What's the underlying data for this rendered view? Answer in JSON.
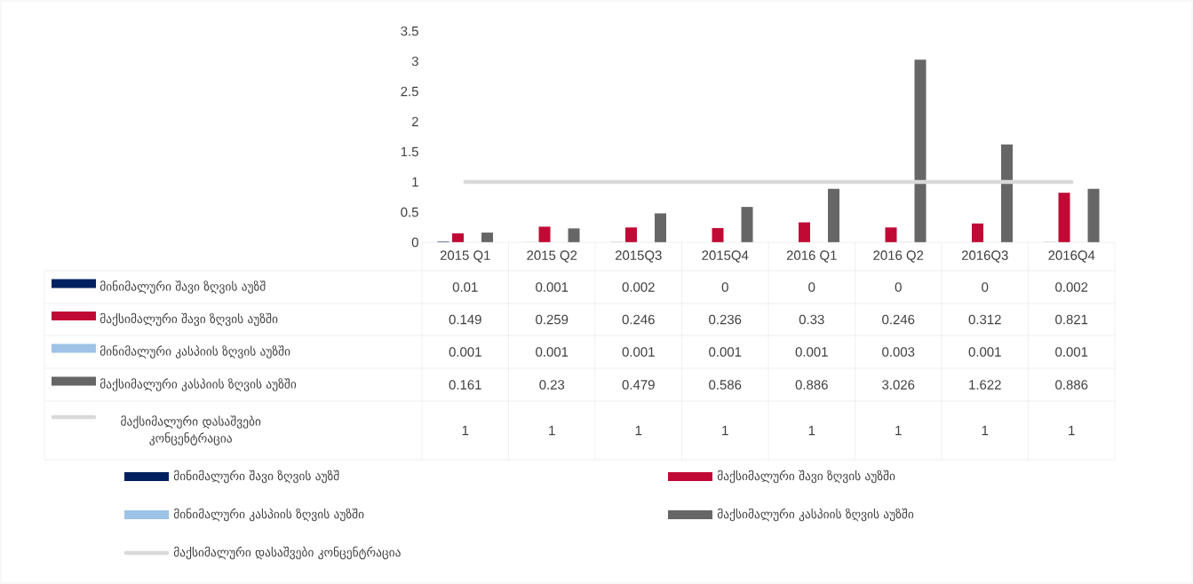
{
  "chart_data": {
    "type": "bar",
    "categories": [
      "2015 Q1",
      "2015 Q2",
      "2015Q3",
      "2015Q4",
      "2016 Q1",
      "2016 Q2",
      "2016Q3",
      "2016Q4"
    ],
    "series": [
      {
        "name": "მინიმალური შავი ზღვის აუზშ",
        "color": "#002060",
        "values": [
          0.01,
          0.001,
          0.002,
          0,
          0,
          0,
          0,
          0.002
        ]
      },
      {
        "name": "მაქსიმალური შავი ზღვის აუზში",
        "color": "#c00a35",
        "values": [
          0.149,
          0.259,
          0.246,
          0.236,
          0.33,
          0.246,
          0.312,
          0.821
        ]
      },
      {
        "name": "მინიმალური კასპიის ზღვის აუზში",
        "color": "#9dc3e6",
        "values": [
          0.001,
          0.001,
          0.001,
          0.001,
          0.001,
          0.003,
          0.001,
          0.001
        ]
      },
      {
        "name": "მაქსიმალური კასპიის ზღვის აუზში",
        "color": "#666666",
        "values": [
          0.161,
          0.23,
          0.479,
          0.586,
          0.886,
          3.026,
          1.622,
          0.886
        ]
      },
      {
        "name": "მაქსიმალური დასაშვები კონცენტრაცია",
        "color": "#d9d9d9",
        "type": "line",
        "values": [
          1,
          1,
          1,
          1,
          1,
          1,
          1,
          1
        ]
      }
    ],
    "ylim": [
      0,
      3.5
    ],
    "yticks": [
      0,
      0.5,
      1,
      1.5,
      2,
      2.5,
      3,
      3.5
    ],
    "data_labels": true,
    "legend": "bottom"
  }
}
